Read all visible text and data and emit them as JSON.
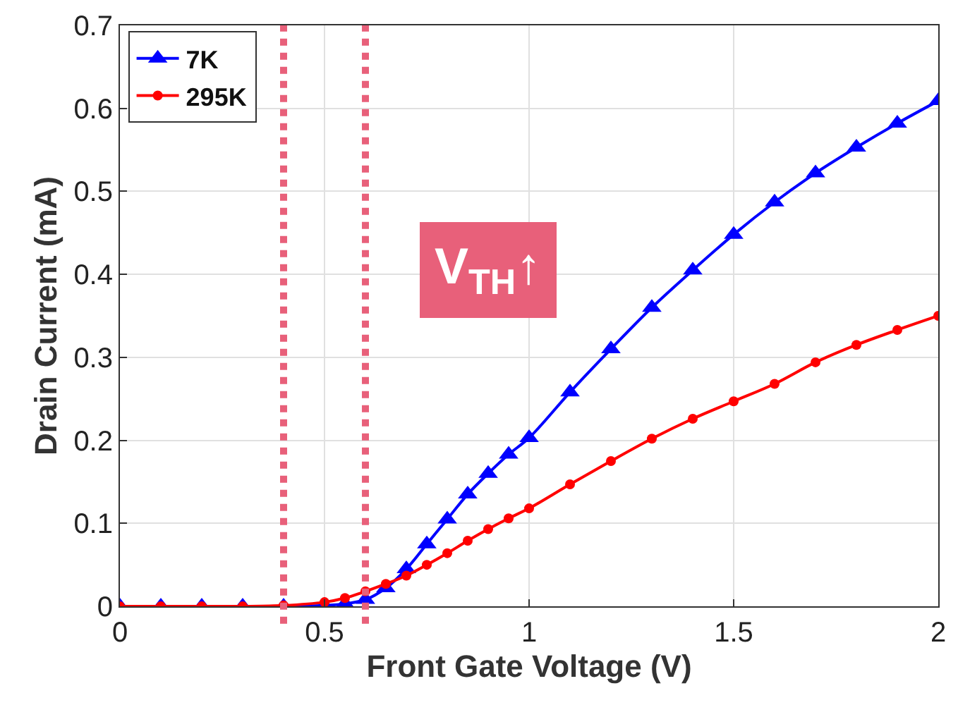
{
  "chart_data": {
    "type": "line",
    "xlabel": "Front Gate Voltage (V)",
    "ylabel": "Drain Current (mA)",
    "x": [
      0,
      0.1,
      0.2,
      0.3,
      0.4,
      0.5,
      0.55,
      0.6,
      0.65,
      0.7,
      0.75,
      0.8,
      0.85,
      0.9,
      0.95,
      1.0,
      1.1,
      1.2,
      1.3,
      1.4,
      1.5,
      1.6,
      1.7,
      1.8,
      1.9,
      2.0
    ],
    "series": [
      {
        "name": "7K",
        "color": "#0000ff",
        "marker": "triangle",
        "values": [
          0,
          0,
          0,
          0,
          0,
          0.001,
          0.003,
          0.008,
          0.022,
          0.045,
          0.075,
          0.105,
          0.135,
          0.16,
          0.183,
          0.203,
          0.258,
          0.31,
          0.36,
          0.405,
          0.448,
          0.487,
          0.522,
          0.553,
          0.582,
          0.609
        ]
      },
      {
        "name": "295K",
        "color": "#ff0000",
        "marker": "circle",
        "values": [
          0,
          0,
          0,
          0,
          0.001,
          0.005,
          0.01,
          0.018,
          0.027,
          0.037,
          0.05,
          0.064,
          0.079,
          0.093,
          0.106,
          0.118,
          0.147,
          0.175,
          0.202,
          0.226,
          0.247,
          0.268,
          0.294,
          0.315,
          0.333,
          0.35
        ]
      }
    ],
    "xlim": [
      0,
      2
    ],
    "xticks": [
      0,
      0.5,
      1,
      1.5,
      2
    ],
    "ylim": [
      0,
      0.7
    ],
    "yticks": [
      0,
      0.1,
      0.2,
      0.3,
      0.4,
      0.5,
      0.6,
      0.7
    ],
    "ref_lines": [
      {
        "axis": "x",
        "value": 0.4,
        "color": "#e8607a",
        "line_style": "dotted"
      },
      {
        "axis": "x",
        "value": 0.6,
        "color": "#e8607a",
        "line_style": "dotted"
      }
    ],
    "annotations": [
      "V$_{TH}$↑"
    ],
    "grid": true,
    "legend": "top left",
    "line_style": "solid"
  }
}
